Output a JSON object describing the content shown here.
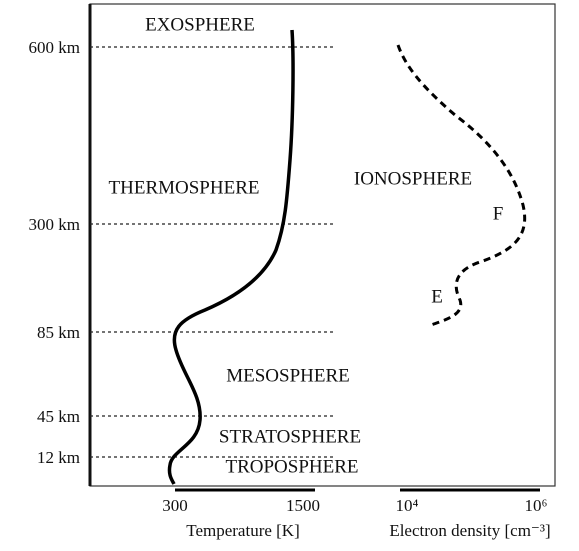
{
  "layers": {
    "exosphere": "EXOSPHERE",
    "thermosphere": "THERMOSPHERE",
    "mesosphere": "MESOSPHERE",
    "stratosphere": "STRATOSPHERE",
    "troposphere": "TROPOSPHERE",
    "ionosphere": "IONOSPHERE",
    "f_region": "F",
    "e_region": "E"
  },
  "altitudes": [
    "600 km",
    "300 km",
    "85 km",
    "45 km",
    "12 km"
  ],
  "temperature_axis": {
    "label": "Temperature [K]",
    "ticks": [
      "300",
      "1500"
    ]
  },
  "density_axis": {
    "label": "Electron density [cm⁻³]",
    "ticks": [
      "10⁴",
      "10⁶"
    ]
  }
}
